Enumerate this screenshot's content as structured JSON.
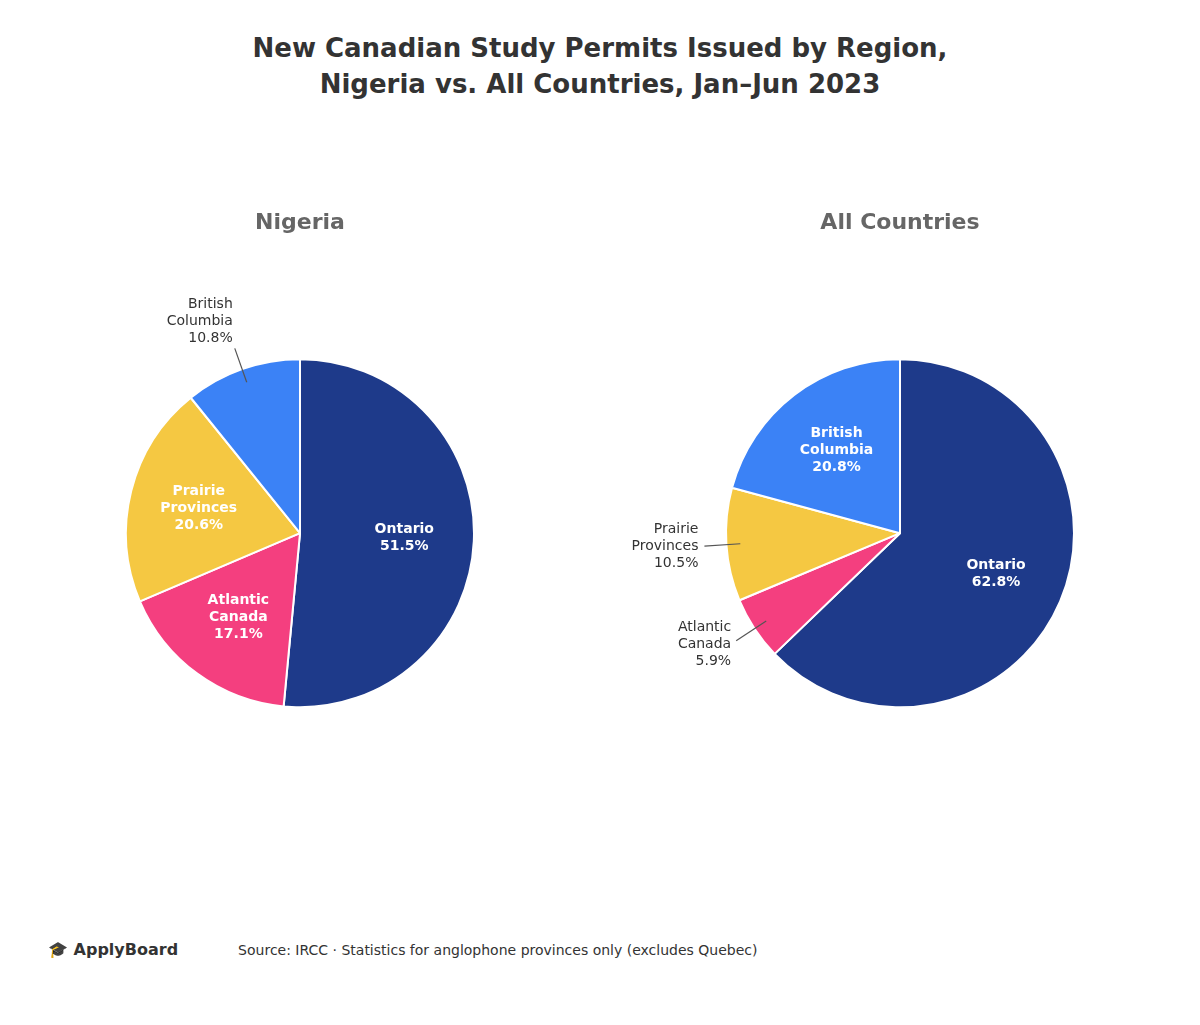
{
  "title": "New Canadian Study Permits Issued by Region,\nNigeria vs. All Countries, Jan–Jun 2023",
  "annotations": [
    "🎓 ApplyBoard",
    "Source: IRCC · Statistics for anglophone provinces only (excludes Quebec)"
  ],
  "chart_data": [
    {
      "type": "pie",
      "subtitle": "Nigeria",
      "categories": [
        "Ontario",
        "Atlantic Canada",
        "Prairie Provinces",
        "British Columbia"
      ],
      "values": [
        51.5,
        17.1,
        20.6,
        10.8
      ],
      "value_labels": [
        "51.5%",
        "17.1%",
        "20.6%",
        "10.8%"
      ],
      "colors": [
        "#1e3a8a",
        "#f43f7f",
        "#f5c842",
        "#3b82f6"
      ],
      "data_labels": true
    },
    {
      "type": "pie",
      "subtitle": "All Countries",
      "categories": [
        "Ontario",
        "Atlantic Canada",
        "Prairie Provinces",
        "British Columbia"
      ],
      "values": [
        62.8,
        5.9,
        10.5,
        20.8
      ],
      "value_labels": [
        "62.8%",
        "5.9%",
        "10.5%",
        "20.8%"
      ],
      "colors": [
        "#1e3a8a",
        "#f43f7f",
        "#f5c842",
        "#3b82f6"
      ],
      "data_labels": true
    }
  ]
}
